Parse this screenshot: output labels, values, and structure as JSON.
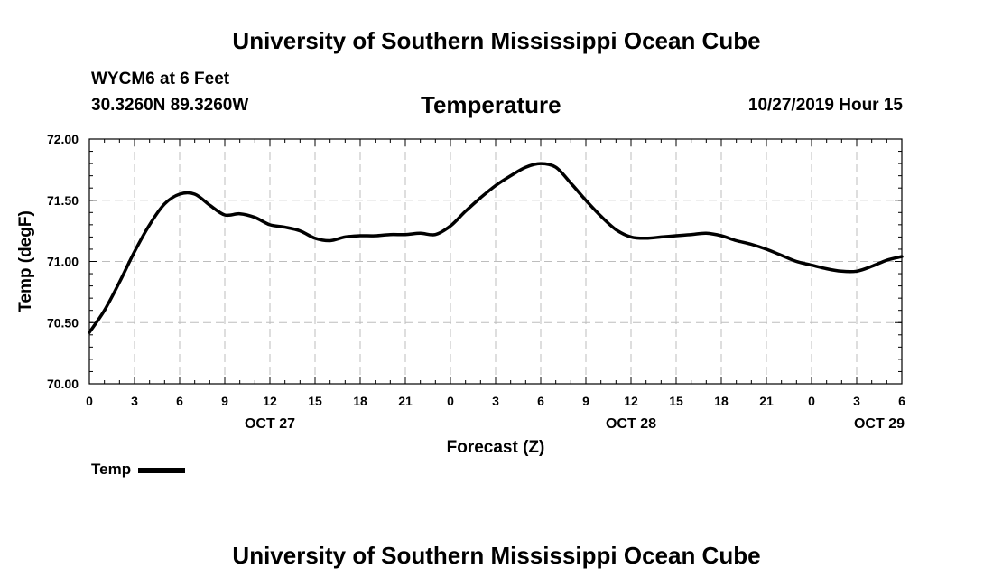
{
  "header": {
    "top_title": "University of Southern Mississippi Ocean Cube",
    "station": "WYCM6 at 6 Feet",
    "coordinates": "30.3260N 89.3260W",
    "variable_title": "Temperature",
    "datetime": "10/27/2019 Hour 15"
  },
  "footer": {
    "bottom_title": "University of Southern Mississippi Ocean Cube"
  },
  "legend": {
    "label": "Temp"
  },
  "chart_data": {
    "type": "line",
    "title": "Temperature",
    "xlabel": "Forecast (Z)",
    "ylabel": "Temp (degF)",
    "ylim": [
      70.0,
      72.0
    ],
    "xlim": [
      0,
      54
    ],
    "grid": true,
    "y_ticks": [
      70.0,
      70.5,
      71.0,
      71.5,
      72.0
    ],
    "y_tick_labels": [
      "70.00",
      "70.50",
      "71.00",
      "71.50",
      "72.00"
    ],
    "x_ticks": [
      0,
      3,
      6,
      9,
      12,
      15,
      18,
      21,
      24,
      27,
      30,
      33,
      36,
      39,
      42,
      45,
      48,
      51,
      54
    ],
    "x_tick_labels": [
      "0",
      "3",
      "6",
      "9",
      "12",
      "15",
      "18",
      "21",
      "0",
      "3",
      "6",
      "9",
      "12",
      "15",
      "18",
      "21",
      "0",
      "3",
      "6"
    ],
    "date_labels": [
      {
        "x": 12,
        "label": "OCT 27"
      },
      {
        "x": 36,
        "label": "OCT 28"
      },
      {
        "x": 52.5,
        "label": "OCT 29"
      }
    ],
    "series": [
      {
        "name": "Temp",
        "color": "#000000",
        "x": [
          0,
          1,
          2,
          3,
          4,
          5,
          6,
          7,
          8,
          9,
          10,
          11,
          12,
          13,
          14,
          15,
          16,
          17,
          18,
          19,
          20,
          21,
          22,
          23,
          24,
          25,
          26,
          27,
          28,
          29,
          30,
          31,
          32,
          33,
          34,
          35,
          36,
          37,
          38,
          39,
          40,
          41,
          42,
          43,
          44,
          45,
          46,
          47,
          48,
          49,
          50,
          51,
          52,
          53,
          54
        ],
        "values": [
          70.42,
          70.6,
          70.83,
          71.08,
          71.3,
          71.47,
          71.55,
          71.55,
          71.46,
          71.38,
          71.39,
          71.36,
          71.3,
          71.28,
          71.25,
          71.19,
          71.17,
          71.2,
          71.21,
          71.21,
          71.22,
          71.22,
          71.23,
          71.22,
          71.29,
          71.41,
          71.52,
          71.62,
          71.7,
          71.77,
          71.8,
          71.77,
          71.64,
          71.5,
          71.37,
          71.26,
          71.2,
          71.19,
          71.2,
          71.21,
          71.22,
          71.23,
          71.21,
          71.17,
          71.14,
          71.1,
          71.05,
          71.0,
          70.97,
          70.94,
          70.92,
          70.92,
          70.96,
          71.01,
          71.04
        ]
      }
    ]
  }
}
